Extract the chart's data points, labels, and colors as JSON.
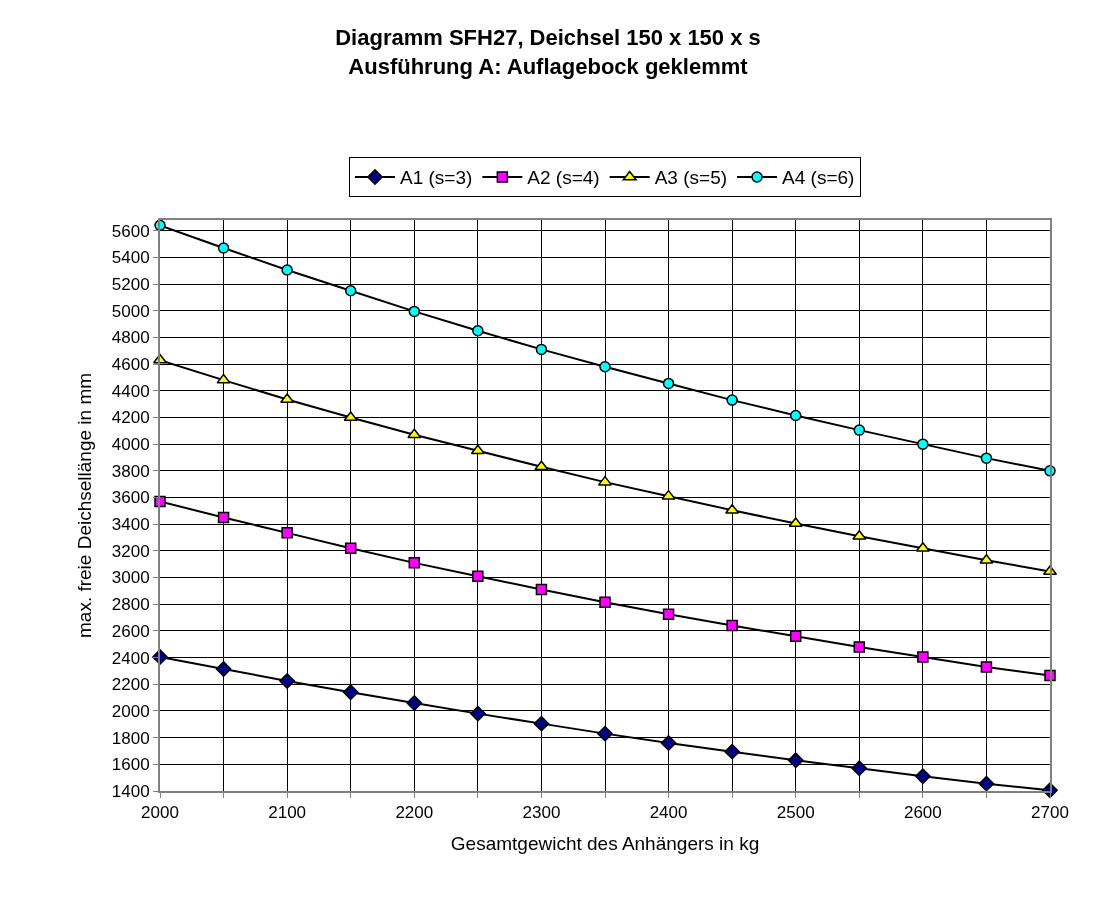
{
  "chart_data": {
    "type": "line",
    "title": "Diagramm SFH27, Deichsel 150 x 150 x s\nAusführung A: Auflagebock geklemmt",
    "xlabel": "Gesamtgewicht des Anhängers in kg",
    "ylabel": "max. freie Deichsellänge in mm",
    "x": [
      2000,
      2050,
      2100,
      2150,
      2200,
      2250,
      2300,
      2350,
      2400,
      2450,
      2500,
      2550,
      2600,
      2650,
      2700
    ],
    "series": [
      {
        "name": "A1 (s=3)",
        "color": "#000080",
        "marker": "diamond",
        "values": [
          2405,
          2315,
          2225,
          2140,
          2060,
          1980,
          1905,
          1830,
          1760,
          1695,
          1630,
          1570,
          1510,
          1455,
          1405
        ]
      },
      {
        "name": "A2 (s=4)",
        "color": "#ff00ff",
        "marker": "square",
        "values": [
          3570,
          3450,
          3335,
          3220,
          3110,
          3010,
          2910,
          2815,
          2725,
          2640,
          2560,
          2480,
          2405,
          2330,
          2265
        ]
      },
      {
        "name": "A3 (s=5)",
        "color": "#ffff00",
        "marker": "triangle",
        "values": [
          4630,
          4480,
          4335,
          4200,
          4070,
          3950,
          3830,
          3715,
          3610,
          3505,
          3405,
          3310,
          3220,
          3130,
          3045
        ]
      },
      {
        "name": "A4 (s=6)",
        "color": "#00ffff",
        "marker": "circle",
        "values": [
          5640,
          5470,
          5305,
          5150,
          4995,
          4850,
          4710,
          4580,
          4455,
          4330,
          4215,
          4105,
          4000,
          3895,
          3800
        ]
      }
    ],
    "xlim": [
      2000,
      2700
    ],
    "xticks": [
      2000,
      {
        "value": 2050,
        "label": null
      },
      2100,
      {
        "value": 2150,
        "label": null
      },
      2200,
      {
        "value": 2250,
        "label": null
      },
      2300,
      {
        "value": 2350,
        "label": null
      },
      2400,
      {
        "value": 2450,
        "label": null
      },
      2500,
      {
        "value": 2550,
        "label": null
      },
      2600,
      {
        "value": 2650,
        "label": null
      },
      2700
    ],
    "ylim": [
      1400,
      5680
    ],
    "yticks": [
      1400,
      1600,
      1800,
      2000,
      2200,
      2400,
      2600,
      2800,
      3000,
      3200,
      3400,
      3600,
      3800,
      4000,
      4200,
      4400,
      4600,
      4800,
      5000,
      5200,
      5400,
      5600
    ],
    "grid": true,
    "legend": "top",
    "line_style": "solid"
  }
}
